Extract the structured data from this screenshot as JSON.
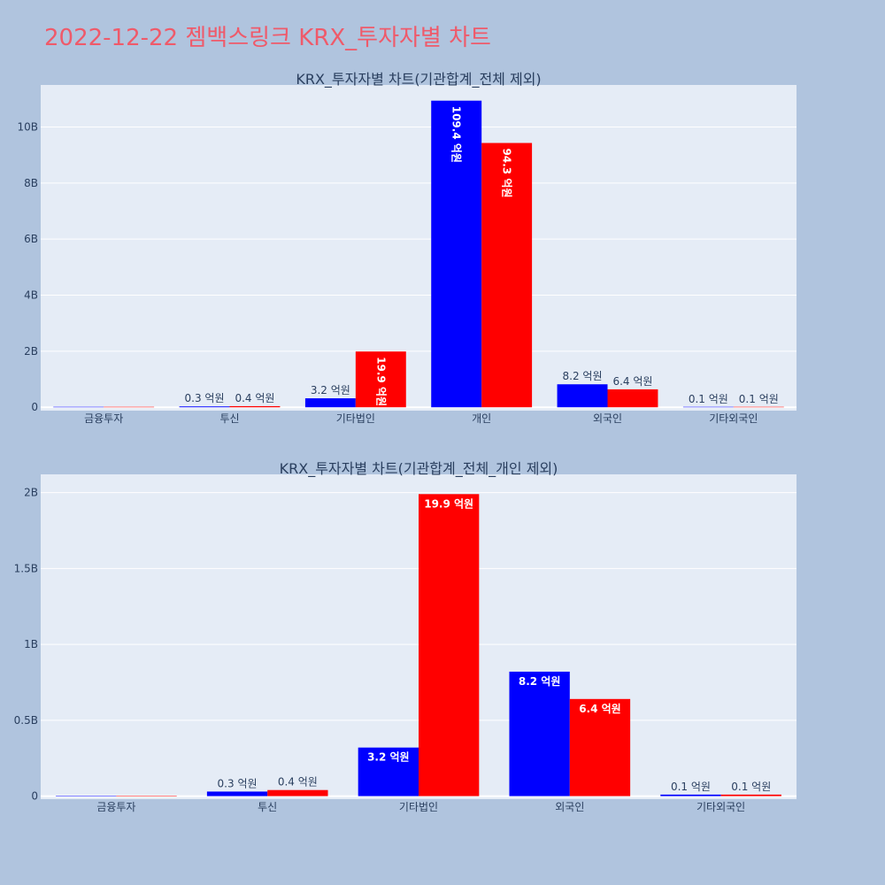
{
  "page_title": "2022-12-22 젬백스링크 KRX_투자자별 차트",
  "colors": {
    "series_a": "#0000ff",
    "series_b": "#ff0000",
    "plot_bg": "#e5ecf6",
    "page_bg": "#b0c4de",
    "title": "#ef5a6a"
  },
  "chart_data": [
    {
      "type": "bar",
      "title": "KRX_투자자별 차트(기관합계_전체 제외)",
      "categories": [
        "금융투자",
        "투신",
        "기타법인",
        "개인",
        "외국인",
        "기타외국인"
      ],
      "ylim": [
        -0.12,
        11.5
      ],
      "yticks": [
        0,
        2,
        4,
        6,
        8,
        10
      ],
      "ytick_labels": [
        "0",
        "2B",
        "4B",
        "6B",
        "8B",
        "10B"
      ],
      "grid": true,
      "series": [
        {
          "values": [
            0,
            0.03,
            0.32,
            10.94,
            0.82,
            0.01
          ],
          "labels": [
            "",
            "0.3 억원",
            "3.2 억원",
            "109.4 억원",
            "8.2 억원",
            "0.1 억원"
          ]
        },
        {
          "values": [
            0,
            0.04,
            1.99,
            9.43,
            0.64,
            0.01
          ],
          "labels": [
            "",
            "0.4 억원",
            "19.9 억원",
            "94.3 억원",
            "6.4 억원",
            "0.1 억원"
          ]
        }
      ]
    },
    {
      "type": "bar",
      "title": "KRX_투자자별 차트(기관합계_전체_개인 제외)",
      "categories": [
        "금융투자",
        "투신",
        "기타법인",
        "외국인",
        "기타외국인"
      ],
      "ylim": [
        -0.02,
        2.12
      ],
      "yticks": [
        0,
        0.5,
        1,
        1.5,
        2
      ],
      "ytick_labels": [
        "0",
        "0.5B",
        "1B",
        "1.5B",
        "2B"
      ],
      "grid": true,
      "series": [
        {
          "values": [
            0,
            0.03,
            0.32,
            0.82,
            0.01
          ],
          "labels": [
            "",
            "0.3 억원",
            "3.2 억원",
            "8.2 억원",
            "0.1 억원"
          ]
        },
        {
          "values": [
            0,
            0.04,
            1.99,
            0.64,
            0.01
          ],
          "labels": [
            "",
            "0.4 억원",
            "19.9 억원",
            "6.4 억원",
            "0.1 억원"
          ]
        }
      ]
    }
  ]
}
